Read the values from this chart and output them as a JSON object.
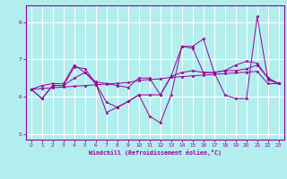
{
  "xlabel": "Windchill (Refroidissement éolien,°C)",
  "x": [
    0,
    1,
    2,
    3,
    4,
    5,
    6,
    7,
    8,
    9,
    10,
    11,
    12,
    13,
    14,
    15,
    16,
    17,
    18,
    19,
    20,
    21,
    22,
    23
  ],
  "line_spiky": [
    6.2,
    5.95,
    6.3,
    6.3,
    6.8,
    6.75,
    6.35,
    5.58,
    5.72,
    5.87,
    6.05,
    5.48,
    5.3,
    6.05,
    7.35,
    7.35,
    7.55,
    6.65,
    6.05,
    5.95,
    5.95,
    8.15,
    6.45,
    6.35
  ],
  "line_trend": [
    6.2,
    6.22,
    6.24,
    6.26,
    6.28,
    6.3,
    6.32,
    6.34,
    6.36,
    6.38,
    6.44,
    6.46,
    6.48,
    6.52,
    6.54,
    6.56,
    6.58,
    6.6,
    6.62,
    6.64,
    6.66,
    6.68,
    6.35,
    6.35
  ],
  "line_mid1": [
    6.2,
    6.3,
    6.35,
    6.35,
    6.85,
    6.65,
    6.4,
    6.35,
    6.3,
    6.25,
    6.5,
    6.5,
    6.05,
    6.55,
    7.35,
    7.3,
    6.65,
    6.65,
    6.7,
    6.85,
    6.95,
    6.9,
    6.5,
    6.35
  ],
  "line_mid2": [
    6.2,
    5.95,
    6.3,
    6.3,
    6.5,
    6.65,
    6.35,
    5.85,
    5.72,
    5.87,
    6.05,
    6.05,
    6.05,
    6.55,
    6.65,
    6.7,
    6.65,
    6.65,
    6.7,
    6.7,
    6.75,
    6.85,
    6.5,
    6.35
  ],
  "color": "#990099",
  "bg_color": "#b2eeee",
  "grid_color": "#ffffff",
  "ylim": [
    4.85,
    8.45
  ],
  "yticks": [
    5,
    6,
    7,
    8
  ],
  "xticks": [
    0,
    1,
    2,
    3,
    4,
    5,
    6,
    7,
    8,
    9,
    10,
    11,
    12,
    13,
    14,
    15,
    16,
    17,
    18,
    19,
    20,
    21,
    22,
    23
  ]
}
